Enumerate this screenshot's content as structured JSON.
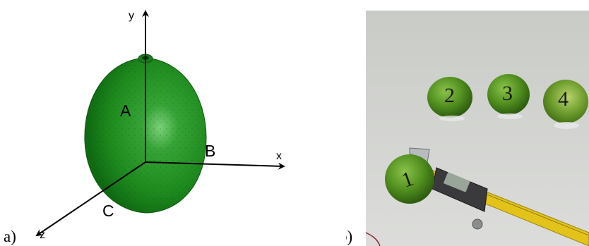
{
  "panel_a": {
    "caption": "a)",
    "axes": {
      "y": "y",
      "x": "x",
      "z": "z"
    },
    "dimensions": {
      "a": "A",
      "b": "B",
      "c": "C"
    },
    "fruit_color": "#1f8a1f"
  },
  "panel_b": {
    "caption": "b)",
    "fruits": [
      {
        "label": "1"
      },
      {
        "label": "2"
      },
      {
        "label": "3"
      },
      {
        "label": "4"
      }
    ],
    "caliper_color": "#e3c31a"
  }
}
